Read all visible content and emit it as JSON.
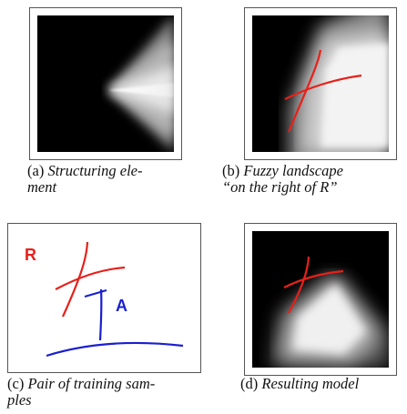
{
  "figures": [
    {
      "id": "a",
      "label": "(a)",
      "caption_line1": "Structuring ele-",
      "caption_line2": "ment"
    },
    {
      "id": "b",
      "label": "(b)",
      "caption_line1": "Fuzzy landscape",
      "caption_line2": "“on the right of R”"
    },
    {
      "id": "c",
      "label": "(c)",
      "caption_line1": "Pair of training sam-",
      "caption_line2": "ples",
      "text_R": "R",
      "text_A": "A"
    },
    {
      "id": "d",
      "label": "(d)",
      "caption_line1": "Resulting model",
      "caption_line2": ""
    }
  ],
  "colors": {
    "red": "#e8201a",
    "blue": "#1a1fd0"
  }
}
